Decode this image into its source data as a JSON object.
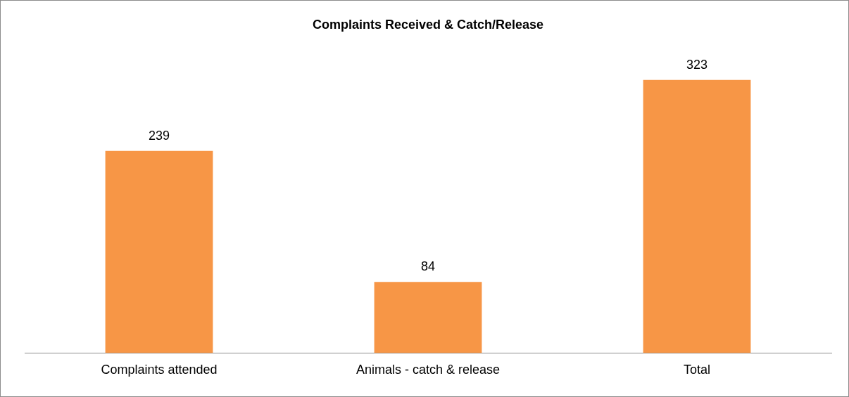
{
  "chart_data": {
    "type": "bar",
    "title": "Complaints Received & Catch/Release",
    "categories": [
      "Complaints attended",
      "Animals - catch & release",
      "Total"
    ],
    "values": [
      239,
      84,
      323
    ],
    "color": "#f79646",
    "data_labels": true
  }
}
